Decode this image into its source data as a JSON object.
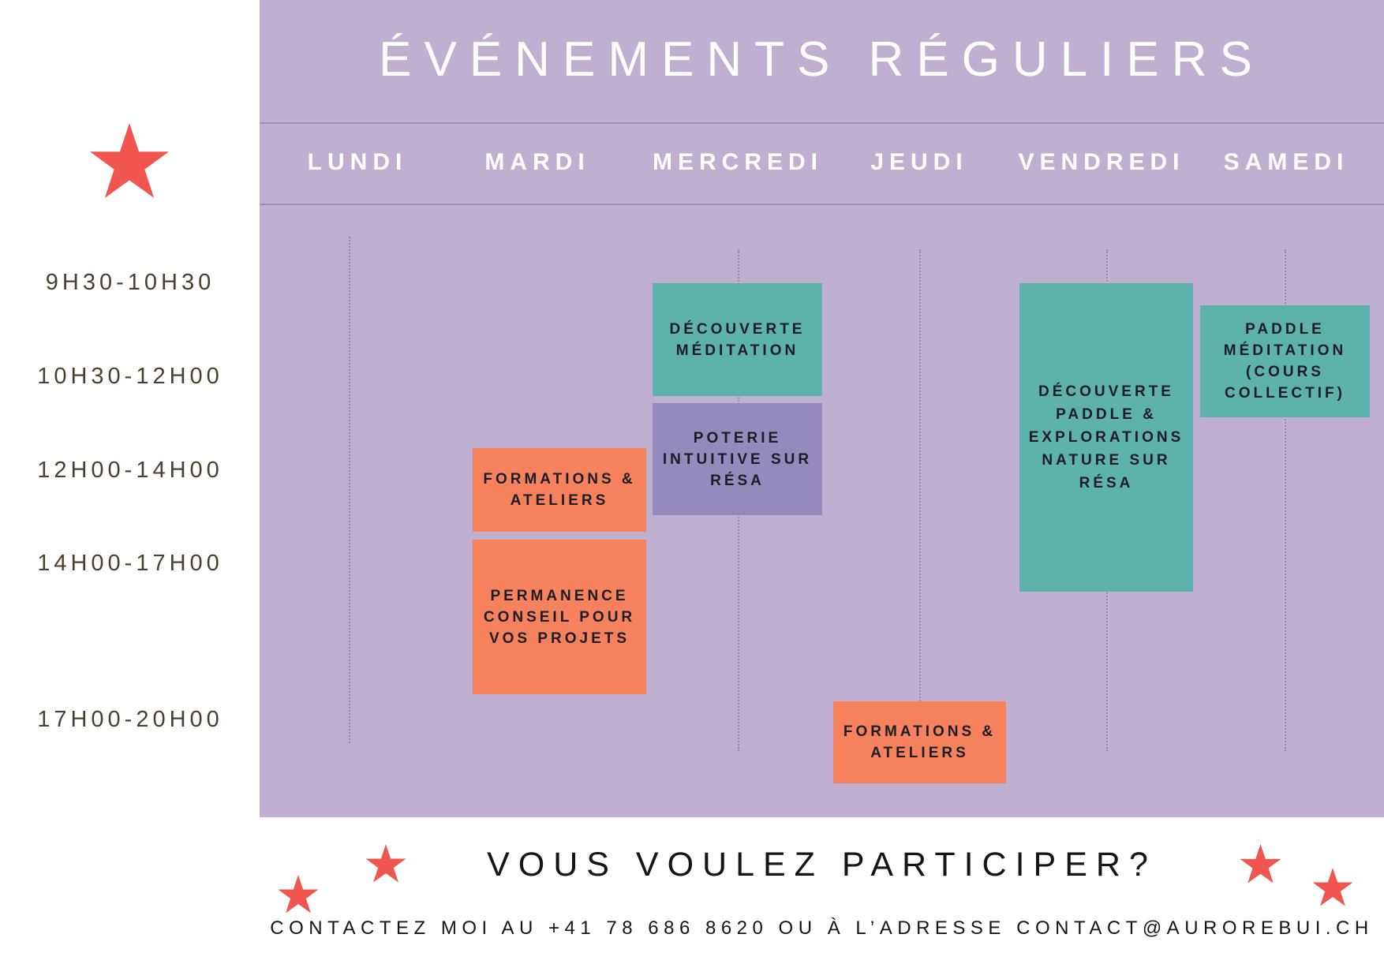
{
  "title": "ÉVÉNEMENTS RÉGULIERS",
  "days": [
    "LUNDI",
    "MARDI",
    "MERCREDI",
    "JEUDI",
    "VENDREDI",
    "SAMEDI"
  ],
  "time_slots": [
    "9H30-10H30",
    "10H30-12H00",
    "12H00-14H00",
    "14H00-17H00",
    "17H00-20H00"
  ],
  "events": [
    {
      "day": "MARDI",
      "slot": "12H00-14H00",
      "label": "FORMATIONS & ATELIERS",
      "color": "#f6825d"
    },
    {
      "day": "MARDI",
      "slot": "14H00-17H00",
      "label": "PERMANENCE CONSEIL POUR VOS PROJETS",
      "color": "#f6825d"
    },
    {
      "day": "MERCREDI",
      "slot": "9H30-10H30",
      "label": "DÉCOUVERTE MÉDITATION",
      "color": "#5db2ab"
    },
    {
      "day": "MERCREDI",
      "slot": "10H30-12H00",
      "label": "POTERIE INTUITIVE SUR RÉSA",
      "color": "#948abd"
    },
    {
      "day": "JEUDI",
      "slot": "17H00-20H00",
      "label": "FORMATIONS & ATELIERS",
      "color": "#f6825d"
    },
    {
      "day": "VENDREDI",
      "slot": "9H30-10H30 / 14H00-17H00",
      "label": "DÉCOUVERTE PADDLE & EXPLORATIONS NATURE SUR RÉSA",
      "color": "#5db2ab"
    },
    {
      "day": "SAMEDI",
      "slot": "9H30-10H30 / 10H30-12H00",
      "label": "PADDLE MÉDITATION (COURS COLLECTIF)",
      "color": "#5db2ab"
    }
  ],
  "cta": "VOUS VOULEZ PARTICIPER?",
  "contact": "CONTACTEZ MOI AU +41 78 686 8620 OU À L’ADRESSE CONTACT@AUROREBUI.CH",
  "colors": {
    "panel": "#bfb0d1",
    "star": "#f0554e",
    "teal": "#5db2ab",
    "coral": "#f6825d",
    "violet": "#948abd"
  },
  "icons": [
    "star-icon"
  ]
}
